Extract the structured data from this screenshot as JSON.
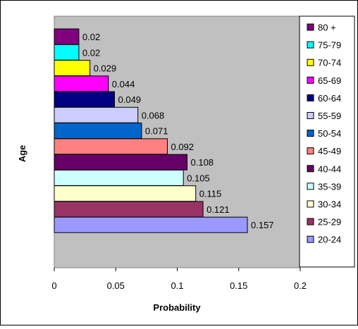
{
  "chart_data": {
    "type": "bar",
    "orientation": "horizontal",
    "title": "",
    "xlabel": "Probability",
    "ylabel": "Age",
    "xlim": [
      0,
      0.2
    ],
    "xticks": [
      "0",
      "0.05",
      "0.1",
      "0.15",
      "0.2"
    ],
    "xtick_values": [
      0,
      0.05,
      0.1,
      0.15,
      0.2
    ],
    "legend_position": "right",
    "plot_background": "#C0C0C0",
    "categories": [
      "20-24",
      "25-29",
      "30-34",
      "35-39",
      "40-44",
      "45-49",
      "50-54",
      "55-59",
      "60-64",
      "65-69",
      "70-74",
      "75-79",
      "80 +"
    ],
    "values": [
      0.157,
      0.121,
      0.115,
      0.105,
      0.108,
      0.092,
      0.071,
      0.068,
      0.049,
      0.044,
      0.029,
      0.02,
      0.02
    ],
    "value_labels": [
      "0.157",
      "0.121",
      "0.115",
      "0.105",
      "0.108",
      "0.092",
      "0.071",
      "0.068",
      "0.049",
      "0.044",
      "0.029",
      "0.02",
      "0.02"
    ],
    "colors": [
      "#9999FF",
      "#993366",
      "#FFFFCC",
      "#CCFFFF",
      "#660066",
      "#FF8080",
      "#0066CC",
      "#CCCCFF",
      "#000080",
      "#FF00FF",
      "#FFFF00",
      "#00FFFF",
      "#800080"
    ]
  }
}
